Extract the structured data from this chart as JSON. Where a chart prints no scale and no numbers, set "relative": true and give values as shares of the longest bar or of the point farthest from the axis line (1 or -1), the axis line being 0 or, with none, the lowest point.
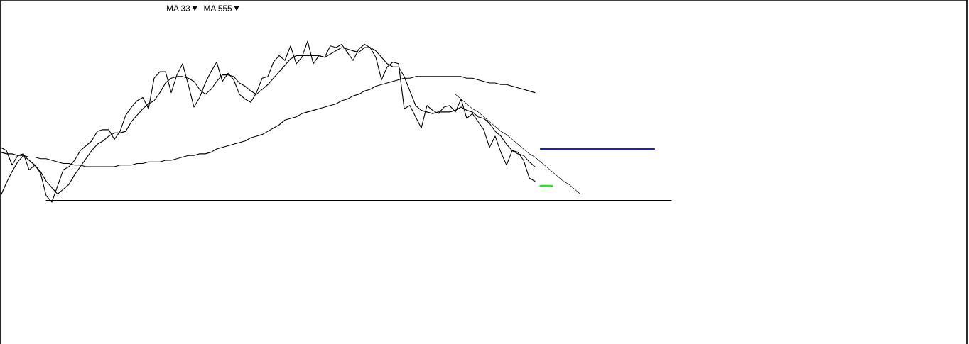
{
  "chart_data": {
    "type": "line",
    "relative": true,
    "legend": "top left",
    "categories": [
      null,
      null,
      null,
      null,
      null,
      null,
      null,
      null,
      null,
      null,
      null,
      null,
      null,
      null,
      null,
      null,
      null,
      null,
      null,
      null,
      null,
      null,
      null,
      null,
      null,
      null,
      null,
      null,
      null,
      null,
      null,
      null,
      null,
      null,
      null,
      null,
      null,
      null,
      null,
      null,
      null,
      null,
      null,
      null,
      null,
      null,
      null,
      null,
      null,
      null,
      null,
      null,
      null,
      null,
      null,
      null,
      null,
      null,
      null,
      null,
      null,
      null,
      null,
      null,
      null,
      null,
      null,
      null,
      null,
      null,
      null,
      null,
      null,
      null,
      null,
      null,
      null,
      null,
      null,
      null,
      null,
      null,
      null,
      null,
      null,
      null,
      null,
      null,
      null,
      null,
      null,
      null,
      null,
      null,
      null,
      null,
      null,
      null,
      null,
      null,
      null,
      null,
      null,
      null,
      null,
      null,
      null,
      null,
      null,
      null,
      null,
      null,
      null,
      null,
      null,
      null,
      null,
      null,
      null,
      null,
      null,
      null,
      null,
      null,
      null,
      null,
      null,
      null,
      null,
      null,
      null,
      null,
      null,
      null,
      null,
      null,
      null,
      null,
      null,
      null,
      null,
      null,
      null,
      null,
      null,
      null,
      null,
      null,
      null,
      null,
      null,
      null,
      null,
      null,
      null,
      null,
      null,
      null,
      null,
      null,
      null,
      null,
      null,
      null,
      null,
      null,
      null,
      null,
      null,
      null,
      null
    ],
    "series": [
      {
        "color": "#000000",
        "values": [
          0.34,
          0.32,
          0.23,
          0.29,
          0.3,
          0.2,
          0.23,
          0.18,
          0.04,
          0,
          0.1,
          0.2,
          0.22,
          0.26,
          0.32,
          0.35,
          0.38,
          0.44,
          0.45,
          0.45,
          0.39,
          0.44,
          0.54,
          0.59,
          0.63,
          0.65,
          0.58,
          0.77,
          0.81,
          0.81,
          0.68,
          0.79,
          0.86,
          0.73,
          0.59,
          0.65,
          0.74,
          0.81,
          0.87,
          0.75,
          0.8,
          0.76,
          0.67,
          0.64,
          0.62,
          0.68,
          0.77,
          0.78,
          0.87,
          0.91,
          0.88,
          0.97,
          0.86,
          0.9,
          1,
          0.86,
          0.91,
          0.9,
          0.97,
          0.96,
          0.98,
          0.93,
          0.88,
          0.95,
          0.98,
          0.96,
          0.9,
          0.76,
          0.84,
          0.87,
          0.86,
          0.58,
          0.6,
          0.53,
          0.46,
          0.6,
          0.57,
          0.55,
          0.59,
          0.6,
          0.56,
          0.64,
          0.52,
          0.55,
          0.5,
          0.45,
          0.34,
          0.41,
          0.31,
          0.23,
          0.32,
          0.31,
          0.26,
          0.15,
          0.13,
          null,
          null,
          null,
          null,
          null,
          null,
          null,
          null,
          null,
          null,
          null,
          null,
          null,
          null,
          null,
          null,
          null,
          null,
          null,
          null,
          null,
          null,
          null,
          null,
          null,
          null,
          null,
          null,
          null,
          null,
          null,
          null,
          null,
          null,
          null,
          null,
          null,
          null,
          null,
          null,
          null,
          null,
          null,
          null,
          null,
          null,
          null,
          null,
          null,
          null,
          null,
          null,
          null,
          null,
          null,
          null,
          null,
          null,
          null,
          null,
          null,
          null,
          null,
          null,
          null,
          null,
          null,
          null,
          null,
          null,
          null,
          null,
          null,
          null,
          null,
          null
        ]
      },
      {
        "name": "MA 33",
        "color": "#000000",
        "values": [
          0.04,
          0.12,
          0.19,
          0.25,
          0.29,
          0.26,
          0.23,
          0.19,
          0.13,
          0.09,
          0.05,
          0.08,
          0.11,
          0.17,
          0.22,
          0.27,
          0.32,
          0.36,
          0.38,
          0.41,
          0.43,
          0.43,
          0.44,
          0.5,
          0.54,
          0.58,
          0.61,
          0.63,
          0.68,
          0.74,
          0.77,
          0.78,
          0.78,
          0.77,
          0.75,
          0.7,
          0.67,
          0.7,
          0.75,
          0.79,
          0.79,
          0.78,
          0.74,
          0.72,
          0.69,
          0.67,
          0.7,
          0.73,
          0.77,
          0.81,
          0.85,
          0.89,
          0.91,
          0.91,
          0.91,
          0.91,
          0.91,
          0.9,
          0.92,
          0.94,
          0.96,
          0.95,
          0.94,
          0.93,
          0.96,
          0.96,
          0.94,
          0.9,
          0.86,
          0.84,
          0.84,
          0.78,
          0.69,
          0.6,
          0.57,
          0.56,
          0.55,
          0.56,
          0.56,
          0.56,
          0.57,
          0.59,
          0.57,
          0.56,
          0.53,
          0.52,
          0.49,
          0.44,
          0.41,
          0.36,
          0.32,
          0.3,
          0.29,
          0.25,
          0.22,
          null,
          null,
          null,
          null,
          null,
          null,
          null,
          null,
          null,
          null,
          null,
          null,
          null,
          null,
          null,
          null,
          null,
          null,
          null,
          null,
          null,
          null,
          null,
          null,
          null,
          null,
          null,
          null,
          null,
          null,
          null,
          null,
          null,
          null,
          null,
          null,
          null,
          null,
          null,
          null,
          null,
          null,
          null,
          null,
          null,
          null,
          null,
          null,
          null,
          null,
          null,
          null,
          null,
          null,
          null,
          null,
          null,
          null,
          null,
          null,
          null,
          null,
          null,
          null,
          null,
          null,
          null,
          null,
          null,
          null,
          null,
          null,
          null,
          null,
          null,
          null
        ]
      },
      {
        "name": "MA 555",
        "color": "#000000",
        "values": [
          0.31,
          0.3,
          0.3,
          0.29,
          0.29,
          0.28,
          0.28,
          0.27,
          0.27,
          0.26,
          0.25,
          0.24,
          0.24,
          0.23,
          0.23,
          0.22,
          0.22,
          0.22,
          0.22,
          0.22,
          0.22,
          0.23,
          0.23,
          0.23,
          0.24,
          0.24,
          0.25,
          0.25,
          0.25,
          0.26,
          0.26,
          0.27,
          0.28,
          0.29,
          0.29,
          0.3,
          0.3,
          0.31,
          0.33,
          0.34,
          0.35,
          0.36,
          0.37,
          0.38,
          0.4,
          0.41,
          0.42,
          0.44,
          0.46,
          0.48,
          0.51,
          0.52,
          0.53,
          0.55,
          0.56,
          0.57,
          0.58,
          0.59,
          0.6,
          0.61,
          0.63,
          0.64,
          0.66,
          0.67,
          0.69,
          0.7,
          0.72,
          0.73,
          0.74,
          0.75,
          0.76,
          0.77,
          0.77,
          0.78,
          0.78,
          0.78,
          0.78,
          0.78,
          0.78,
          0.78,
          0.78,
          0.78,
          0.77,
          0.77,
          0.76,
          0.75,
          0.74,
          0.74,
          0.73,
          0.73,
          0.72,
          0.71,
          0.7,
          0.69,
          0.68,
          null,
          null,
          null,
          null,
          null,
          null,
          null,
          null,
          null,
          null,
          null,
          null,
          null,
          null,
          null,
          null,
          null,
          null,
          null,
          null,
          null,
          null,
          null,
          null,
          null,
          null,
          null,
          null,
          null,
          null,
          null,
          null,
          null,
          null,
          null,
          null,
          null,
          null,
          null,
          null,
          null,
          null,
          null,
          null,
          null,
          null,
          null,
          null,
          null,
          null,
          null,
          null,
          null,
          null,
          null,
          null,
          null,
          null,
          null,
          null,
          null,
          null,
          null,
          null,
          null,
          null,
          null,
          null,
          null,
          null,
          null,
          null,
          null,
          null,
          null,
          null
        ]
      },
      {
        "color": "#000000",
        "values": [
          null,
          null,
          null,
          null,
          null,
          null,
          null,
          null,
          null,
          null,
          null,
          null,
          null,
          null,
          null,
          null,
          null,
          null,
          null,
          null,
          null,
          null,
          null,
          null,
          null,
          null,
          null,
          null,
          null,
          null,
          null,
          null,
          null,
          null,
          null,
          null,
          null,
          null,
          null,
          null,
          null,
          null,
          null,
          null,
          null,
          null,
          null,
          null,
          null,
          null,
          null,
          null,
          null,
          null,
          null,
          null,
          null,
          null,
          null,
          null,
          null,
          null,
          null,
          null,
          null,
          null,
          null,
          null,
          null,
          null,
          null,
          null,
          null,
          null,
          null,
          null,
          null,
          null,
          null,
          null,
          0.67,
          0.64,
          0.61,
          0.58,
          0.56,
          0.53,
          0.5,
          0.47,
          0.44,
          0.42,
          0.39,
          0.36,
          0.33,
          0.3,
          0.28,
          0.25,
          0.22,
          0.19,
          0.16,
          0.13,
          0.11,
          0.08,
          0.05,
          null,
          null,
          null,
          null,
          null,
          null,
          null,
          null,
          null,
          null,
          null,
          null,
          null,
          null,
          null,
          null,
          null,
          null,
          null,
          null,
          null,
          null,
          null,
          null,
          null,
          null,
          null,
          null,
          null,
          null,
          null,
          null,
          null,
          null,
          null,
          null,
          null,
          null,
          null,
          null,
          null,
          null,
          null,
          null,
          null,
          null,
          null,
          null,
          null,
          null,
          null,
          null,
          null,
          null,
          null,
          null,
          null,
          null,
          null,
          null,
          null,
          null,
          null,
          null,
          null,
          null,
          null,
          null
        ]
      },
      {
        "color": "#000000",
        "values": [
          null,
          null,
          null,
          null,
          null,
          null,
          null,
          null,
          0.01,
          0.01,
          0.01,
          0.01,
          0.01,
          0.01,
          0.01,
          0.01,
          0.01,
          0.01,
          0.01,
          0.01,
          0.01,
          0.01,
          0.01,
          0.01,
          0.01,
          0.01,
          0.01,
          0.01,
          0.01,
          0.01,
          0.01,
          0.01,
          0.01,
          0.01,
          0.01,
          0.01,
          0.01,
          0.01,
          0.01,
          0.01,
          0.01,
          0.01,
          0.01,
          0.01,
          0.01,
          0.01,
          0.01,
          0.01,
          0.01,
          0.01,
          0.01,
          0.01,
          0.01,
          0.01,
          0.01,
          0.01,
          0.01,
          0.01,
          0.01,
          0.01,
          0.01,
          0.01,
          0.01,
          0.01,
          0.01,
          0.01,
          0.01,
          0.01,
          0.01,
          0.01,
          0.01,
          0.01,
          0.01,
          0.01,
          0.01,
          0.01,
          0.01,
          0.01,
          0.01,
          0.01,
          0.01,
          0.01,
          0.01,
          0.01,
          0.01,
          0.01,
          0.01,
          0.01,
          0.01,
          0.01,
          0.01,
          0.01,
          0.01,
          0.01,
          0.01,
          0.01,
          0.01,
          0.01,
          0.01,
          0.01,
          0.01,
          0.01,
          0.01,
          0.01,
          0.01,
          0.01,
          0.01,
          0.01,
          0.01,
          0.01,
          0.01,
          0.01,
          0.01,
          0.01,
          0.01,
          0.01,
          0.01,
          0.01,
          0.01,
          null,
          null,
          null,
          null,
          null,
          null,
          null,
          null,
          null,
          null,
          null,
          null,
          null,
          null,
          null,
          null,
          null,
          null,
          null,
          null,
          null,
          null,
          null,
          null,
          null,
          null,
          null,
          null,
          null,
          null,
          null,
          null,
          null,
          null,
          null,
          null,
          null,
          null,
          null,
          null,
          null,
          null,
          null,
          null,
          null,
          null,
          null,
          null,
          null,
          null,
          null,
          null
        ]
      },
      {
        "color": "#1c1cc8",
        "values": [
          null,
          null,
          null,
          null,
          null,
          null,
          null,
          null,
          null,
          null,
          null,
          null,
          null,
          null,
          null,
          null,
          null,
          null,
          null,
          null,
          null,
          null,
          null,
          null,
          null,
          null,
          null,
          null,
          null,
          null,
          null,
          null,
          null,
          null,
          null,
          null,
          null,
          null,
          null,
          null,
          null,
          null,
          null,
          null,
          null,
          null,
          null,
          null,
          null,
          null,
          null,
          null,
          null,
          null,
          null,
          null,
          null,
          null,
          null,
          null,
          null,
          null,
          null,
          null,
          null,
          null,
          null,
          null,
          null,
          null,
          null,
          null,
          null,
          null,
          null,
          null,
          null,
          null,
          null,
          null,
          null,
          null,
          null,
          null,
          null,
          null,
          null,
          null,
          null,
          null,
          null,
          null,
          null,
          null,
          null,
          0.33,
          0.33,
          0.33,
          0.33,
          0.33,
          0.33,
          0.33,
          0.33,
          0.33,
          0.33,
          0.33,
          0.33,
          0.33,
          0.33,
          0.33,
          0.33,
          0.33,
          0.33,
          0.33,
          0.33,
          0.33,
          null,
          null,
          null,
          null,
          null,
          null,
          null,
          null,
          null,
          null,
          null,
          null,
          null,
          null,
          null,
          null,
          null,
          null,
          null,
          null,
          null,
          null,
          null,
          null,
          null,
          null,
          null,
          null,
          null,
          null,
          null,
          null,
          null,
          null,
          null,
          null,
          null,
          null,
          null,
          null,
          null,
          null,
          null,
          null,
          null,
          null,
          null,
          null,
          null,
          null,
          null,
          null,
          null,
          null,
          null
        ]
      },
      {
        "color": "#33dd33",
        "values": [
          null,
          null,
          null,
          null,
          null,
          null,
          null,
          null,
          null,
          null,
          null,
          null,
          null,
          null,
          null,
          null,
          null,
          null,
          null,
          null,
          null,
          null,
          null,
          null,
          null,
          null,
          null,
          null,
          null,
          null,
          null,
          null,
          null,
          null,
          null,
          null,
          null,
          null,
          null,
          null,
          null,
          null,
          null,
          null,
          null,
          null,
          null,
          null,
          null,
          null,
          null,
          null,
          null,
          null,
          null,
          null,
          null,
          null,
          null,
          null,
          null,
          null,
          null,
          null,
          null,
          null,
          null,
          null,
          null,
          null,
          null,
          null,
          null,
          null,
          null,
          null,
          null,
          null,
          null,
          null,
          null,
          null,
          null,
          null,
          null,
          null,
          null,
          null,
          null,
          null,
          null,
          null,
          null,
          null,
          null,
          0.1,
          0.1,
          0.1,
          null,
          null,
          null,
          null,
          null,
          null,
          null,
          null,
          null,
          null,
          null,
          null,
          null,
          null,
          null,
          null,
          null,
          null,
          null,
          null,
          null,
          null,
          null,
          null,
          null,
          null,
          null,
          null,
          null,
          null,
          null,
          null,
          null,
          null,
          null,
          null,
          null,
          null,
          null,
          null,
          null,
          null,
          null,
          null,
          null,
          null,
          null,
          null,
          null,
          null,
          null,
          null,
          null,
          null,
          null,
          null,
          null,
          null,
          null,
          null,
          null,
          null,
          null,
          null,
          null,
          null,
          null,
          null,
          null,
          null,
          null,
          null,
          null
        ]
      }
    ]
  }
}
